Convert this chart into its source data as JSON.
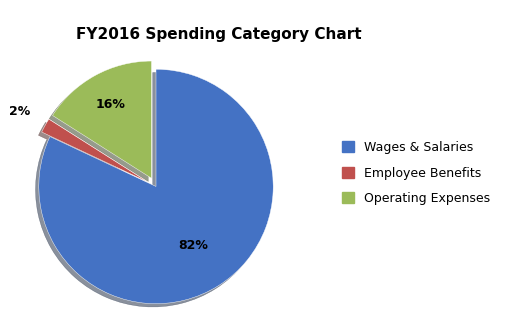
{
  "title": "FY2016 Spending Category Chart",
  "labels": [
    "Wages & Salaries",
    "Employee Benefits",
    "Operating Expenses"
  ],
  "values": [
    82,
    2,
    16
  ],
  "colors": [
    "#4472C4",
    "#C0504D",
    "#9BBB59"
  ],
  "explode": [
    0,
    0.08,
    0.08
  ],
  "autopct_labels": [
    "82%",
    "2%",
    "16%"
  ],
  "legend_labels": [
    "Wages & Salaries",
    "Employee Benefits",
    "Operating Expenses"
  ],
  "title_fontsize": 11,
  "shadow": true,
  "startangle": 90,
  "counterclock": false
}
